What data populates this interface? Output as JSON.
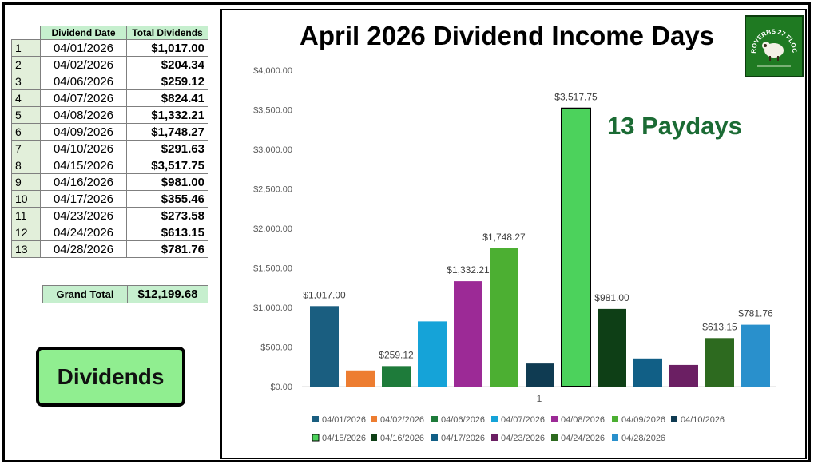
{
  "table": {
    "headers": [
      "Dividend Date",
      "Total Dividends"
    ],
    "rows": [
      {
        "n": "1",
        "date": "04/01/2026",
        "amount": "$1,017.00"
      },
      {
        "n": "2",
        "date": "04/02/2026",
        "amount": "$204.34"
      },
      {
        "n": "3",
        "date": "04/06/2026",
        "amount": "$259.12"
      },
      {
        "n": "4",
        "date": "04/07/2026",
        "amount": "$824.41"
      },
      {
        "n": "5",
        "date": "04/08/2026",
        "amount": "$1,332.21"
      },
      {
        "n": "6",
        "date": "04/09/2026",
        "amount": "$1,748.27"
      },
      {
        "n": "7",
        "date": "04/10/2026",
        "amount": "$291.63"
      },
      {
        "n": "8",
        "date": "04/15/2026",
        "amount": "$3,517.75"
      },
      {
        "n": "9",
        "date": "04/16/2026",
        "amount": "$981.00"
      },
      {
        "n": "10",
        "date": "04/17/2026",
        "amount": "$355.46"
      },
      {
        "n": "11",
        "date": "04/23/2026",
        "amount": "$273.58"
      },
      {
        "n": "12",
        "date": "04/24/2026",
        "amount": "$613.15"
      },
      {
        "n": "13",
        "date": "04/28/2026",
        "amount": "$781.76"
      }
    ],
    "grand_total_label": "Grand Total",
    "grand_total_value": "$12,199.68"
  },
  "button": {
    "label": "Dividends"
  },
  "annotation": "13 Paydays",
  "logo": {
    "text": "PROVERBS 27 FLOCK",
    "color": "#1f7a22"
  },
  "chart_data": {
    "type": "bar",
    "title": "April 2026 Dividend Income Days",
    "categories": [
      "1"
    ],
    "ylim": [
      0,
      4000
    ],
    "yticks": [
      0,
      500,
      1000,
      1500,
      2000,
      2500,
      3000,
      3500,
      4000
    ],
    "ytick_labels": [
      "$0.00",
      "$500.00",
      "$1,000.00",
      "$1,500.00",
      "$2,000.00",
      "$2,500.00",
      "$3,000.00",
      "$3,500.00",
      "$4,000.00"
    ],
    "grid": false,
    "legend_position": "bottom",
    "series": [
      {
        "name": "04/01/2026",
        "value": 1017.0,
        "label": "$1,017.00",
        "color": "#1a5e80"
      },
      {
        "name": "04/02/2026",
        "value": 204.34,
        "label": "",
        "color": "#ed7d31"
      },
      {
        "name": "04/06/2026",
        "value": 259.12,
        "label": "$259.12",
        "color": "#1e7b3a"
      },
      {
        "name": "04/07/2026",
        "value": 824.41,
        "label": "",
        "color": "#15a3d8"
      },
      {
        "name": "04/08/2026",
        "value": 1332.21,
        "label": "$1,332.21",
        "color": "#9c2a96"
      },
      {
        "name": "04/09/2026",
        "value": 1748.27,
        "label": "$1,748.27",
        "color": "#4caf32"
      },
      {
        "name": "04/10/2026",
        "value": 291.63,
        "label": "",
        "color": "#0f3b52"
      },
      {
        "name": "04/15/2026",
        "value": 3517.75,
        "label": "$3,517.75",
        "color": "#4cd25c",
        "outlined": true
      },
      {
        "name": "04/16/2026",
        "value": 981.0,
        "label": "$981.00",
        "color": "#0e3f16"
      },
      {
        "name": "04/17/2026",
        "value": 355.46,
        "label": "",
        "color": "#115f86"
      },
      {
        "name": "04/23/2026",
        "value": 273.58,
        "label": "",
        "color": "#6b1f63"
      },
      {
        "name": "04/24/2026",
        "value": 613.15,
        "label": "$613.15",
        "color": "#2d6a1f"
      },
      {
        "name": "04/28/2026",
        "value": 781.76,
        "label": "$781.76",
        "color": "#2990cc"
      }
    ]
  }
}
